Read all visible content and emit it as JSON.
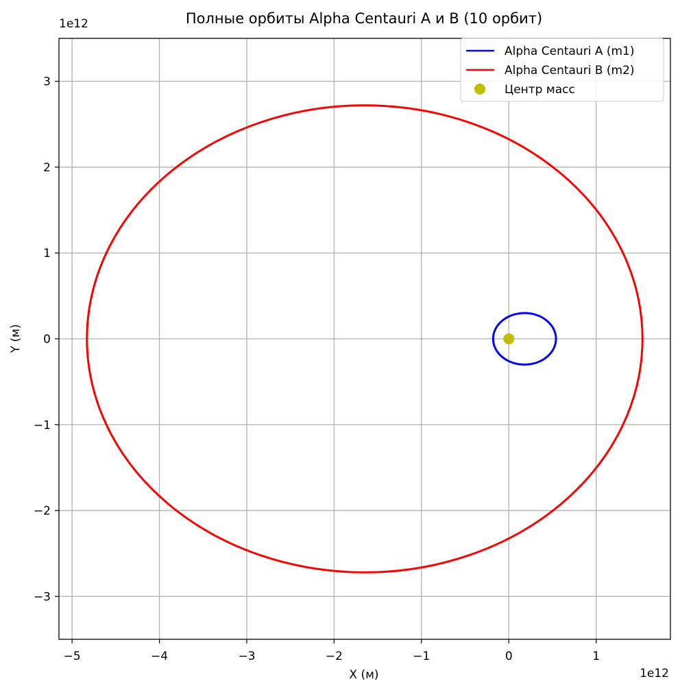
{
  "chart_data": {
    "type": "line",
    "title": "Полные орбиты Alpha Centauri A и B (10 орбит)",
    "xlabel": "X (м)",
    "ylabel": "Y (м)",
    "x_offset_text": "1e12",
    "y_offset_text": "1e12",
    "xlim": [
      -5.15,
      1.85
    ],
    "ylim": [
      -3.5,
      3.5
    ],
    "x_ticks": [
      -5,
      -4,
      -3,
      -2,
      -1,
      0,
      1
    ],
    "y_ticks": [
      -3,
      -2,
      -1,
      0,
      1,
      2,
      3
    ],
    "grid": true,
    "legend_position": "top-right",
    "series": [
      {
        "name": "Alpha Centauri A (m1)",
        "kind": "ellipse",
        "color": "#0000ff",
        "center": [
          0.18,
          0.0
        ],
        "semi_axes": [
          0.36,
          0.3
        ]
      },
      {
        "name": "Alpha Centauri B (m2)",
        "kind": "ellipse",
        "color": "#ff0000",
        "center": [
          -1.65,
          0.0
        ],
        "semi_axes": [
          3.18,
          2.72
        ]
      },
      {
        "name": "Центр масс",
        "kind": "point",
        "color": "#bfbf00",
        "x": 0.0,
        "y": 0.0
      }
    ]
  }
}
